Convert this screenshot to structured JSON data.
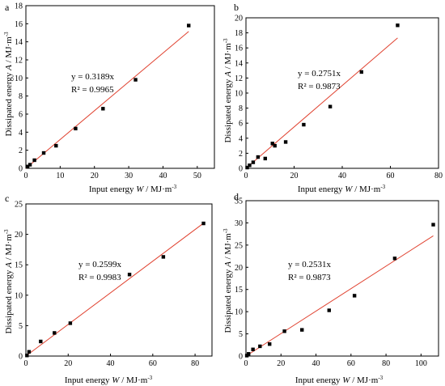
{
  "chart_data": [
    {
      "type": "scatter",
      "panel_label": "a",
      "xlabel_prefix": "Input energy ",
      "xlabel_var": "W",
      "xlabel_suffix": " / MJ·m",
      "xlabel_exp": "-3",
      "ylabel_prefix": "Dissipated energy ",
      "ylabel_var": "A",
      "ylabel_suffix": " / MJ·m",
      "ylabel_exp": "-3",
      "xlim": [
        0,
        55
      ],
      "ylim": [
        0,
        18
      ],
      "xticks": [
        0,
        10,
        20,
        30,
        40,
        50
      ],
      "yticks": [
        0,
        2,
        4,
        6,
        8,
        10,
        12,
        14,
        16,
        18
      ],
      "points": [
        [
          0.5,
          0.2
        ],
        [
          1.2,
          0.4
        ],
        [
          2.5,
          0.9
        ],
        [
          5.2,
          1.7
        ],
        [
          8.8,
          2.5
        ],
        [
          14.5,
          4.4
        ],
        [
          22.5,
          6.6
        ],
        [
          32,
          9.8
        ],
        [
          47.5,
          15.8
        ]
      ],
      "fit_slope": 0.3189,
      "fit_x_end": 47.5,
      "equation": "y = 0.3189x",
      "r2": "R² = 0.9965",
      "point_color": "#000000",
      "line_color": "#e0412f"
    },
    {
      "type": "scatter",
      "panel_label": "b",
      "xlabel_prefix": "Input energy ",
      "xlabel_var": "W",
      "xlabel_suffix": " / MJ·m",
      "xlabel_exp": "-3",
      "ylabel_prefix": "Dissipated energy ",
      "ylabel_var": "A",
      "ylabel_suffix": " / MJ·m",
      "ylabel_exp": "-3",
      "xlim": [
        0,
        80
      ],
      "ylim": [
        0,
        20
      ],
      "xticks": [
        0,
        20,
        40,
        60,
        80
      ],
      "yticks": [
        0,
        2,
        4,
        6,
        8,
        10,
        12,
        14,
        16,
        18,
        20
      ],
      "points": [
        [
          0.5,
          0.1
        ],
        [
          1.5,
          0.4
        ],
        [
          3,
          0.8
        ],
        [
          5,
          1.5
        ],
        [
          8,
          1.3
        ],
        [
          11,
          3.3
        ],
        [
          12,
          3.0
        ],
        [
          16.5,
          3.5
        ],
        [
          24,
          5.8
        ],
        [
          35,
          8.2
        ],
        [
          48,
          12.8
        ],
        [
          63,
          19.0
        ]
      ],
      "fit_slope": 0.2751,
      "fit_x_end": 63,
      "equation": "y = 0.2751x",
      "r2": "R² = 0.9873",
      "point_color": "#000000",
      "line_color": "#e0412f"
    },
    {
      "type": "scatter",
      "panel_label": "c",
      "xlabel_prefix": "Input energy ",
      "xlabel_var": "W",
      "xlabel_suffix": " / MJ·m",
      "xlabel_exp": "-3",
      "ylabel_prefix": "Dissipated energy ",
      "ylabel_var": "A",
      "ylabel_suffix": " / MJ·m",
      "ylabel_exp": "-3",
      "xlim": [
        0,
        88
      ],
      "ylim": [
        0,
        25
      ],
      "xticks": [
        0,
        20,
        40,
        60,
        80
      ],
      "yticks": [
        0,
        5,
        10,
        15,
        20,
        25
      ],
      "points": [
        [
          0.5,
          0.1
        ],
        [
          1.5,
          0.7
        ],
        [
          7,
          2.4
        ],
        [
          13.5,
          3.8
        ],
        [
          21,
          5.4
        ],
        [
          49,
          13.4
        ],
        [
          65,
          16.3
        ],
        [
          84,
          21.8
        ]
      ],
      "fit_slope": 0.2599,
      "fit_x_end": 84,
      "equation": "y = 0.2599x",
      "r2": "R² = 0.9983",
      "point_color": "#000000",
      "line_color": "#e0412f"
    },
    {
      "type": "scatter",
      "panel_label": "d",
      "xlabel_prefix": "Input energy ",
      "xlabel_var": "W",
      "xlabel_suffix": " / MJ·m",
      "xlabel_exp": "-3",
      "ylabel_prefix": "Dissipated energy ",
      "ylabel_var": "A",
      "ylabel_suffix": " / MJ·m",
      "ylabel_exp": "-3",
      "xlim": [
        0,
        110
      ],
      "ylim": [
        0,
        35
      ],
      "xticks": [
        0,
        20,
        40,
        60,
        80,
        100
      ],
      "yticks": [
        0,
        5,
        10,
        15,
        20,
        25,
        30,
        35
      ],
      "points": [
        [
          0.5,
          0.1
        ],
        [
          1.5,
          0.5
        ],
        [
          4,
          1.5
        ],
        [
          8,
          2.2
        ],
        [
          13.5,
          2.7
        ],
        [
          22,
          5.6
        ],
        [
          32,
          5.9
        ],
        [
          47.5,
          10.3
        ],
        [
          62,
          13.6
        ],
        [
          85,
          22.0
        ],
        [
          107,
          29.6
        ]
      ],
      "fit_slope": 0.2531,
      "fit_x_end": 107,
      "equation": "y = 0.2531x",
      "r2": "R² = 0.9873",
      "point_color": "#000000",
      "line_color": "#e0412f"
    }
  ]
}
